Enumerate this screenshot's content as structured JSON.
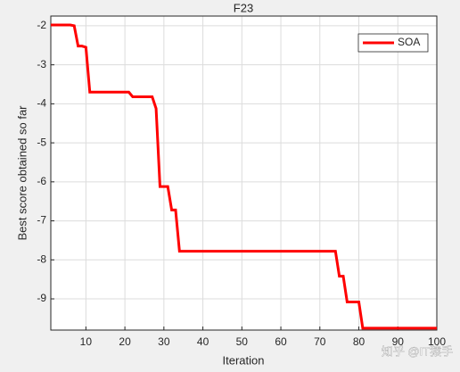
{
  "chart_data": {
    "type": "line",
    "title": "F23",
    "xlabel": "Iteration",
    "ylabel": "Best score obtained so far",
    "x": [
      1,
      2,
      3,
      4,
      5,
      6,
      7,
      8,
      9,
      10,
      11,
      12,
      13,
      14,
      15,
      16,
      17,
      18,
      19,
      20,
      21,
      22,
      23,
      24,
      25,
      26,
      27,
      28,
      29,
      30,
      31,
      32,
      33,
      34,
      35,
      36,
      37,
      38,
      39,
      40,
      41,
      42,
      43,
      44,
      45,
      46,
      47,
      48,
      49,
      50,
      51,
      52,
      53,
      54,
      55,
      56,
      57,
      58,
      59,
      60,
      61,
      62,
      63,
      64,
      65,
      66,
      67,
      68,
      69,
      70,
      71,
      72,
      73,
      74,
      75,
      76,
      77,
      78,
      79,
      80,
      81,
      82,
      83,
      84,
      85,
      86,
      87,
      88,
      89,
      90,
      91,
      92,
      93,
      94,
      95,
      96,
      97,
      98,
      99,
      100
    ],
    "series": [
      {
        "name": "SOA",
        "color": "#ff0000",
        "values": [
          -1.98,
          -1.98,
          -1.98,
          -1.98,
          -1.98,
          -1.98,
          -2.0,
          -2.52,
          -2.52,
          -2.55,
          -3.7,
          -3.7,
          -3.7,
          -3.7,
          -3.7,
          -3.7,
          -3.7,
          -3.7,
          -3.7,
          -3.7,
          -3.7,
          -3.82,
          -3.82,
          -3.82,
          -3.82,
          -3.82,
          -3.82,
          -4.12,
          -6.12,
          -6.12,
          -6.12,
          -6.72,
          -6.72,
          -7.78,
          -7.78,
          -7.78,
          -7.78,
          -7.78,
          -7.78,
          -7.78,
          -7.78,
          -7.78,
          -7.78,
          -7.78,
          -7.78,
          -7.78,
          -7.78,
          -7.78,
          -7.78,
          -7.78,
          -7.78,
          -7.78,
          -7.78,
          -7.78,
          -7.78,
          -7.78,
          -7.78,
          -7.78,
          -7.78,
          -7.78,
          -7.78,
          -7.78,
          -7.78,
          -7.78,
          -7.78,
          -7.78,
          -7.78,
          -7.78,
          -7.78,
          -7.78,
          -7.78,
          -7.78,
          -7.78,
          -7.78,
          -8.42,
          -8.42,
          -9.08,
          -9.08,
          -9.08,
          -9.08,
          -9.75,
          -9.75,
          -9.75,
          -9.75,
          -9.75,
          -9.75,
          -9.75,
          -9.75,
          -9.75,
          -9.75,
          -9.75,
          -9.75,
          -9.75,
          -9.75,
          -9.75,
          -9.75,
          -9.75,
          -9.75,
          -9.75,
          -9.75
        ]
      }
    ],
    "xlim": [
      1,
      100
    ],
    "xticks": [
      10,
      20,
      30,
      40,
      50,
      60,
      70,
      80,
      90,
      100
    ],
    "ylim": [
      -9.8,
      -1.75
    ],
    "yticks": [
      -9,
      -8,
      -7,
      -6,
      -5,
      -4,
      -3,
      -2
    ],
    "grid": true,
    "legend": "top-right",
    "watermark": "知乎 @IT猿手"
  }
}
